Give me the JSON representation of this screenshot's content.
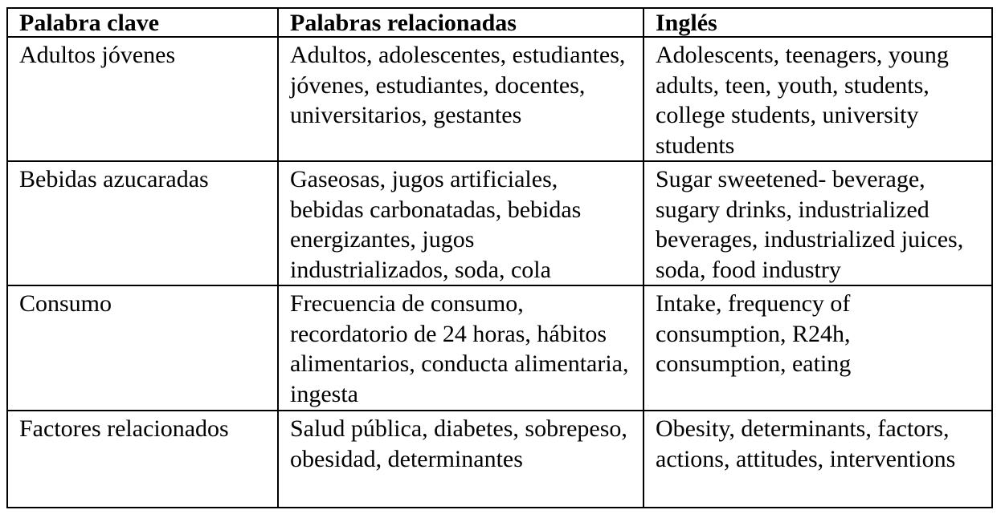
{
  "table": {
    "headers": [
      "Palabra clave",
      "Palabras relacionadas",
      "Inglés"
    ],
    "rows": [
      [
        "Adultos jóvenes",
        "Adultos, adolescentes, estudiantes, jóvenes, estudiantes, docentes, universitarios, gestantes",
        "Adolescents, teenagers, young adults, teen, youth, students, college students, university students"
      ],
      [
        "Bebidas azucaradas",
        "Gaseosas, jugos artificiales, bebidas carbonatadas, bebidas energizantes, jugos industrializados, soda, cola",
        "Sugar sweetened- beverage, sugary drinks, industrialized beverages, industrialized juices, soda, food industry"
      ],
      [
        "Consumo",
        "Frecuencia de consumo, recordatorio de 24 horas, hábitos alimentarios, conducta alimentaria, ingesta",
        "Intake, frequency of consumption, R24h, consumption, eating"
      ],
      [
        "Factores relacionados",
        "Salud pública, diabetes, sobrepeso, obesidad, determinantes",
        "Obesity, determinants, factors, actions, attitudes, interventions"
      ]
    ]
  }
}
